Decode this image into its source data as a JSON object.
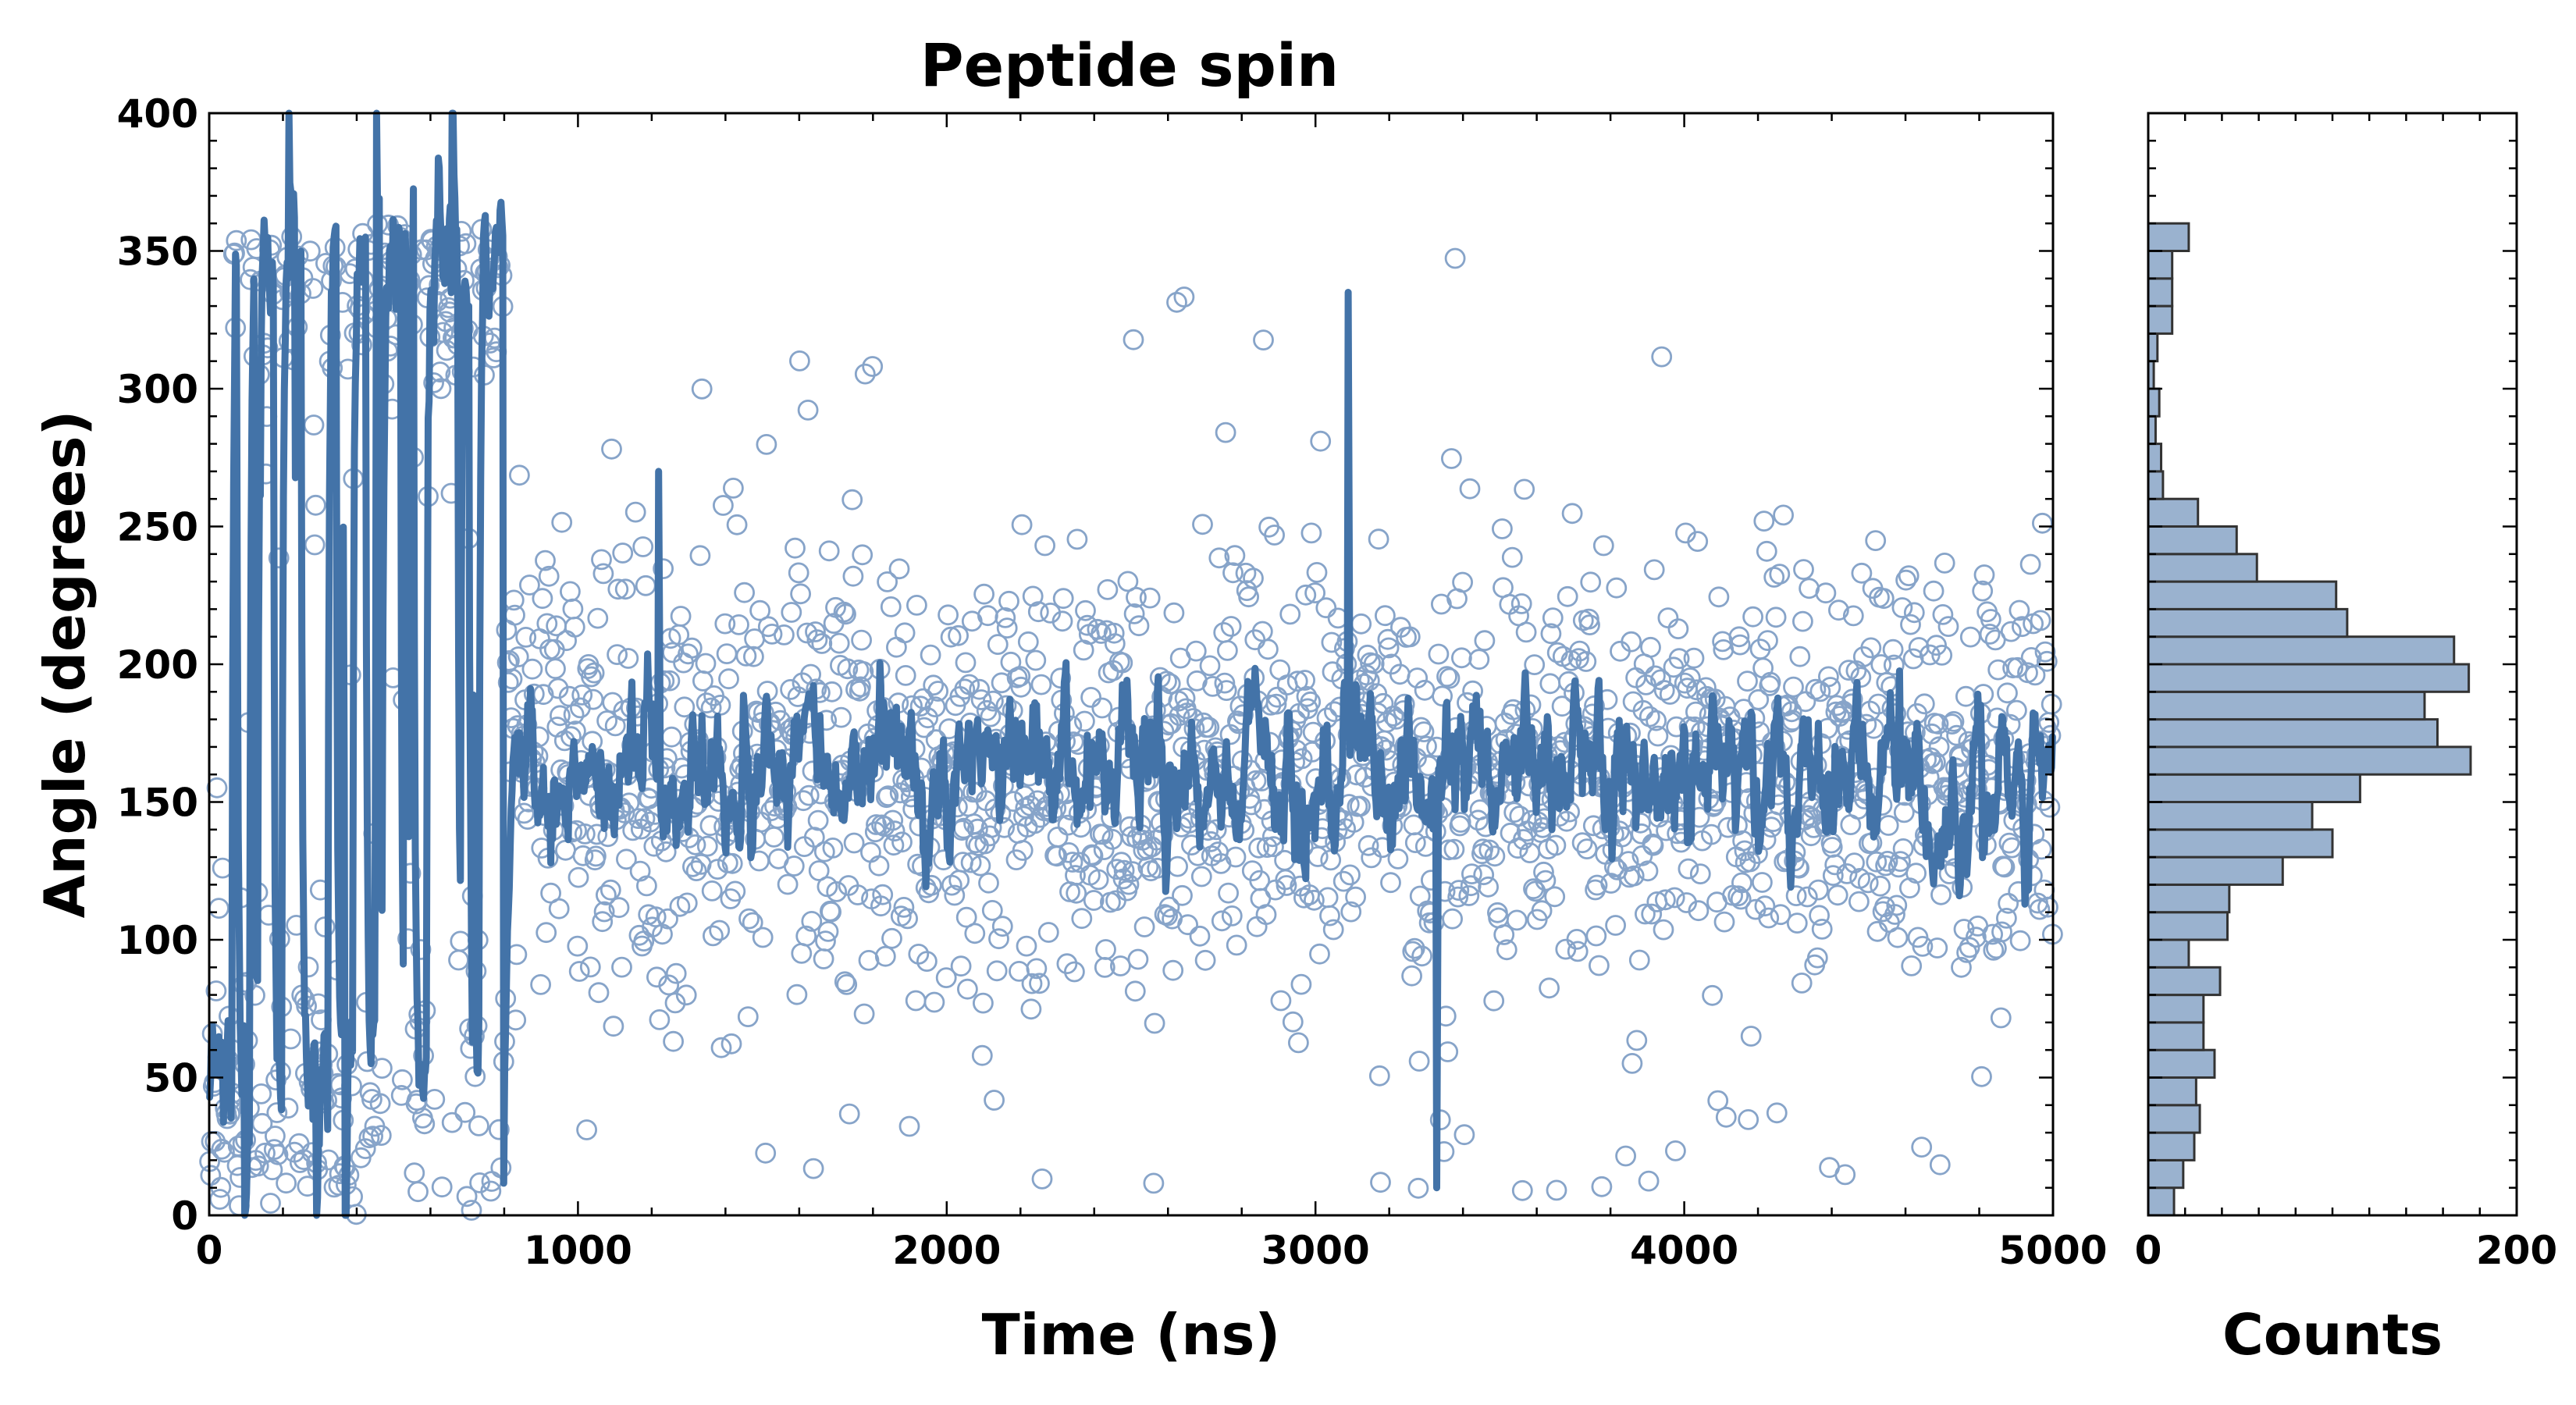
{
  "chart_data": [
    {
      "type": "scatter",
      "name": "time-series",
      "title": "Peptide spin",
      "xlabel": "Time (ns)",
      "ylabel": "Angle (degrees)",
      "xlim": [
        0,
        5000
      ],
      "ylim": [
        0,
        400
      ],
      "xticks": [
        "0",
        "1000",
        "2000",
        "3000",
        "4000",
        "5000"
      ],
      "yticks": [
        "0",
        "50",
        "100",
        "150",
        "200",
        "250",
        "300",
        "350",
        "400"
      ],
      "series": [
        {
          "name": "samples",
          "style": "open circles",
          "color": "#87A4C9"
        },
        {
          "name": "smoothed",
          "style": "line",
          "color": "#4373A8"
        }
      ],
      "regimes": [
        {
          "t_start": 0,
          "t_end": 800,
          "description": "bimodal, flips between ~50 and ~350",
          "centers": [
            50,
            350
          ]
        },
        {
          "t_start": 800,
          "t_end": 5000,
          "description": "fluctuates around ~160",
          "center": 160
        }
      ],
      "notable_events": [
        {
          "t": 1220,
          "angle": 270
        },
        {
          "t": 3090,
          "angle": 335
        },
        {
          "t": 3330,
          "angle": 10
        }
      ]
    },
    {
      "type": "bar",
      "orientation": "horizontal",
      "name": "histogram",
      "xlabel": "Counts",
      "xlim": [
        0,
        200
      ],
      "xticks": [
        "0",
        "200"
      ],
      "bin_width": 10,
      "bin_centers": [
        5,
        15,
        25,
        35,
        45,
        55,
        65,
        75,
        85,
        95,
        105,
        115,
        125,
        135,
        145,
        155,
        165,
        175,
        185,
        195,
        205,
        215,
        225,
        235,
        245,
        255,
        265,
        275,
        285,
        295,
        305,
        315,
        325,
        335,
        345,
        355
      ],
      "counts": [
        14,
        19,
        25,
        28,
        26,
        36,
        30,
        30,
        39,
        22,
        43,
        44,
        73,
        100,
        89,
        115,
        175,
        157,
        150,
        174,
        166,
        108,
        102,
        59,
        48,
        27,
        8,
        7,
        4,
        6,
        3,
        5,
        13,
        13,
        13,
        22
      ],
      "color": "#9AB2CF"
    }
  ]
}
